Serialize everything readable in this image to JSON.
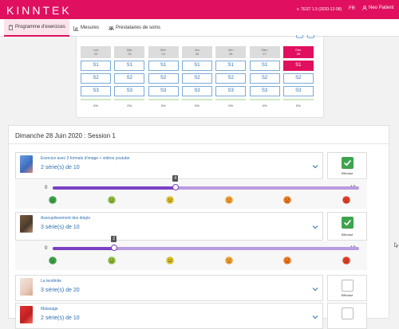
{
  "header": {
    "logo": "KINNTEK",
    "version": "v. TEST 1.5 (2020-12-08)",
    "lang": "FR",
    "user": "Neo Patient",
    "brand_color": "#e0105f"
  },
  "nav": {
    "tabs": [
      {
        "label": "Programme d'exercices",
        "icon": "clipboard-icon",
        "active": true
      },
      {
        "label": "Mesures",
        "icon": "chart-icon",
        "active": false
      },
      {
        "label": "Prestataires de soins",
        "icon": "team-icon",
        "active": false
      }
    ]
  },
  "calendar": {
    "days": [
      {
        "name": "Lun",
        "date": "22",
        "slots": [
          "S1",
          "S2",
          "S3"
        ],
        "pct": "0%"
      },
      {
        "name": "Mar",
        "date": "23",
        "slots": [
          "S1",
          "S2",
          "S3"
        ],
        "pct": "0%"
      },
      {
        "name": "Mer",
        "date": "24",
        "slots": [
          "S1",
          "S2",
          "S3"
        ],
        "pct": "0%"
      },
      {
        "name": "Jeu",
        "date": "25",
        "slots": [
          "S1",
          "S2",
          "S3"
        ],
        "pct": "0%"
      },
      {
        "name": "Ven",
        "date": "26",
        "slots": [
          "S1",
          "S2",
          "S3"
        ],
        "pct": "0%"
      },
      {
        "name": "Sam",
        "date": "27",
        "slots": [
          "S1",
          "S2",
          "S3"
        ],
        "pct": "0%"
      },
      {
        "name": "Dim",
        "date": "28",
        "slots": [
          "S1",
          "S2",
          "S3"
        ],
        "pct": "0%"
      }
    ],
    "selected_day": 6,
    "selected_slot": 0
  },
  "session": {
    "title": "Dimanche 28 Juin 2020 : Session 1",
    "exercises": [
      {
        "title": "Exercice avec 3 formats d'image + vidéos youtube",
        "series": "2 série(s) de 10",
        "done": true,
        "done_label": "Effectué",
        "slider": {
          "min": "0",
          "max": "10",
          "value": 4,
          "value_label": "4"
        }
      },
      {
        "title": "Assouplissement des doigts",
        "series": "3 série(s) de 10",
        "done": true,
        "done_label": "Effectué",
        "slider": {
          "min": "0",
          "max": "10",
          "value": 2,
          "value_label": "2"
        }
      },
      {
        "title": "La tendinite",
        "series": "3 série(s) de 20",
        "done": false,
        "done_label": "Effectué"
      },
      {
        "title": "Malaxage",
        "series": "2 série(s) de 10",
        "done": false,
        "done_label": ""
      }
    ]
  },
  "pain_faces": [
    "face-happy-icon",
    "face-slight-icon",
    "face-neutral-icon",
    "face-sad-icon",
    "face-sadder-icon",
    "face-worst-icon"
  ],
  "pain_colors": [
    "#3fa34d",
    "#8cbf3f",
    "#d8c02a",
    "#f0a030",
    "#ee7a22",
    "#e0402a"
  ]
}
